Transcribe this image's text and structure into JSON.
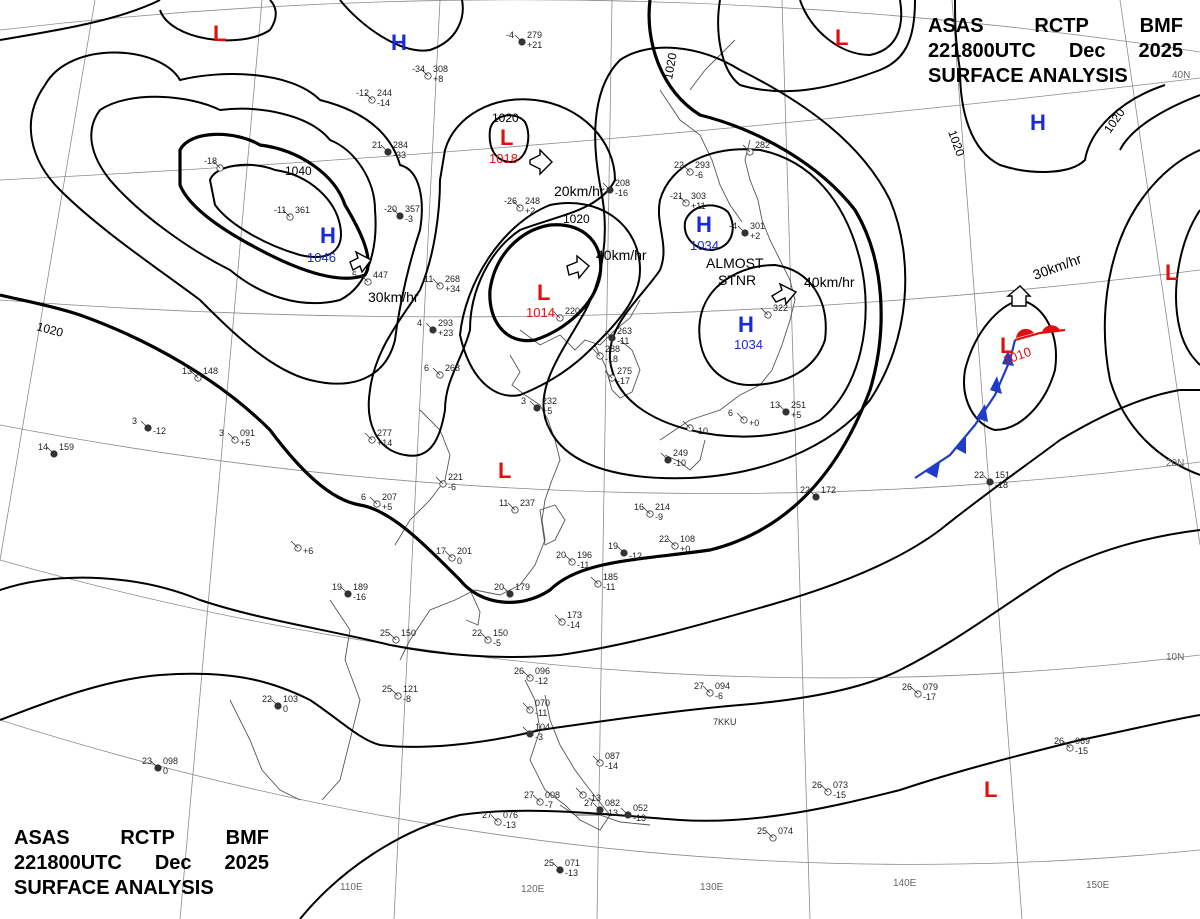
{
  "header": {
    "line1": [
      "ASAS",
      "RCTP",
      "BMF"
    ],
    "line2": [
      "221800UTC",
      "Dec",
      "2025"
    ],
    "line3": "SURFACE ANALYSIS"
  },
  "colors": {
    "high": "#1a2ad8",
    "low": "#e01010",
    "cold_front": "#1e3cc8",
    "warm_front": "#e01010",
    "isobar": "#000000",
    "grid": "#8a8a8a",
    "coast": "#555555"
  },
  "lon_labels": [
    "110E",
    "120E",
    "130E",
    "140E",
    "150E"
  ],
  "lat_labels": [
    "40N",
    "20N",
    "10N"
  ],
  "highs": [
    {
      "symbol": "H",
      "value": ""
    },
    {
      "symbol": "H",
      "value": "1046"
    },
    {
      "symbol": "H",
      "value": "1034"
    },
    {
      "symbol": "H",
      "value": "1034"
    },
    {
      "symbol": "H",
      "value": ""
    }
  ],
  "lows": [
    {
      "symbol": "L",
      "value": ""
    },
    {
      "symbol": "L",
      "value": "1018"
    },
    {
      "symbol": "L",
      "value": "1014"
    },
    {
      "symbol": "L",
      "value": ""
    },
    {
      "symbol": "L",
      "value": "1010"
    },
    {
      "symbol": "L",
      "value": ""
    },
    {
      "symbol": "L",
      "value": ""
    },
    {
      "symbol": "L",
      "value": ""
    }
  ],
  "isobar_labels": [
    "1040",
    "1020",
    "1020",
    "1020",
    "1020",
    "1020",
    "1020"
  ],
  "motion_labels": [
    "20km/hr",
    "40km/hr",
    "30km/hr",
    "40km/hr",
    "30km/hr"
  ],
  "stationary_label": [
    "ALMOST",
    "STNR"
  ],
  "ship_label": "7KKU",
  "station_obs": [
    {
      "t": "-4",
      "p": "279",
      "d": "+21"
    },
    {
      "t": "-34",
      "p": "308",
      "d": "+8"
    },
    {
      "t": "-12",
      "p": "244",
      "d": "-14"
    },
    {
      "t": "21",
      "p": "284",
      "d": "-33"
    },
    {
      "t": "-18",
      "p": "",
      "d": ""
    },
    {
      "t": "-11",
      "p": "361",
      "d": ""
    },
    {
      "t": "-20",
      "p": "357",
      "d": "-3"
    },
    {
      "t": "5",
      "p": "447",
      "d": ""
    },
    {
      "t": "-26",
      "p": "248",
      "d": "+2"
    },
    {
      "t": "",
      "p": "208",
      "d": "-16"
    },
    {
      "t": "22",
      "p": "293",
      "d": "-6"
    },
    {
      "t": "-21",
      "p": "303",
      "d": "+11"
    },
    {
      "t": "-4",
      "p": "301",
      "d": "+2"
    },
    {
      "t": "",
      "p": "282",
      "d": ""
    },
    {
      "t": "11",
      "p": "268",
      "d": "+34"
    },
    {
      "t": "4",
      "p": "293",
      "d": "+23"
    },
    {
      "t": "6",
      "p": "268",
      "d": ""
    },
    {
      "t": "",
      "p": "220",
      "d": ""
    },
    {
      "t": "",
      "p": "263",
      "d": "-11"
    },
    {
      "t": "",
      "p": "288",
      "d": "-18"
    },
    {
      "t": "",
      "p": "275",
      "d": "-17"
    },
    {
      "t": "3",
      "p": "232",
      "d": "+5"
    },
    {
      "t": "",
      "p": "",
      "d": "-10"
    },
    {
      "t": "6",
      "p": "",
      "d": "+0"
    },
    {
      "t": "13",
      "p": "251",
      "d": "+5"
    },
    {
      "t": "",
      "p": "322",
      "d": ""
    },
    {
      "t": "13",
      "p": "148",
      "d": ""
    },
    {
      "t": "3",
      "p": "",
      "d": "-12"
    },
    {
      "t": "3",
      "p": "091",
      "d": "+5"
    },
    {
      "t": "",
      "p": "277",
      "d": "+14"
    },
    {
      "t": "14",
      "p": "159",
      "d": ""
    },
    {
      "t": "",
      "p": "221",
      "d": "-6"
    },
    {
      "t": "11",
      "p": "237",
      "d": ""
    },
    {
      "t": "",
      "p": "249",
      "d": "-10"
    },
    {
      "t": "6",
      "p": "207",
      "d": "+5"
    },
    {
      "t": "16",
      "p": "214",
      "d": "-9"
    },
    {
      "t": "22",
      "p": "172",
      "d": ""
    },
    {
      "t": "17",
      "p": "201",
      "d": "0"
    },
    {
      "t": "20",
      "p": "196",
      "d": "-11"
    },
    {
      "t": "19",
      "p": "",
      "d": "-12"
    },
    {
      "t": "22",
      "p": "108",
      "d": "+0"
    },
    {
      "t": "",
      "p": "185",
      "d": "-11"
    },
    {
      "t": "20",
      "p": "179",
      "d": ""
    },
    {
      "t": "",
      "p": "173",
      "d": "-14"
    },
    {
      "t": "",
      "p": "",
      "d": "+6"
    },
    {
      "t": "19",
      "p": "189",
      "d": "-16"
    },
    {
      "t": "22",
      "p": "150",
      "d": "-5"
    },
    {
      "t": "25",
      "p": "150",
      "d": ""
    },
    {
      "t": "22",
      "p": "151",
      "d": "-18"
    },
    {
      "t": "26",
      "p": "096",
      "d": "-12"
    },
    {
      "t": "",
      "p": "070",
      "d": "-11"
    },
    {
      "t": "",
      "p": "104",
      "d": "-3"
    },
    {
      "t": "27",
      "p": "094",
      "d": "-6"
    },
    {
      "t": "25",
      "p": "121",
      "d": "-8"
    },
    {
      "t": "22",
      "p": "103",
      "d": "0"
    },
    {
      "t": "26",
      "p": "079",
      "d": "-17"
    },
    {
      "t": "26",
      "p": "069",
      "d": "-15"
    },
    {
      "t": "23",
      "p": "098",
      "d": "0"
    },
    {
      "t": "",
      "p": "087",
      "d": "-14"
    },
    {
      "t": "",
      "p": "",
      "d": "-13"
    },
    {
      "t": "27",
      "p": "082",
      "d": "-13"
    },
    {
      "t": "27",
      "p": "008",
      "d": "-7"
    },
    {
      "t": "27",
      "p": "076",
      "d": "-13"
    },
    {
      "t": "",
      "p": "052",
      "d": "-13"
    },
    {
      "t": "26",
      "p": "073",
      "d": "-15"
    },
    {
      "t": "25",
      "p": "074",
      "d": ""
    },
    {
      "t": "25",
      "p": "071",
      "d": "-13"
    }
  ]
}
